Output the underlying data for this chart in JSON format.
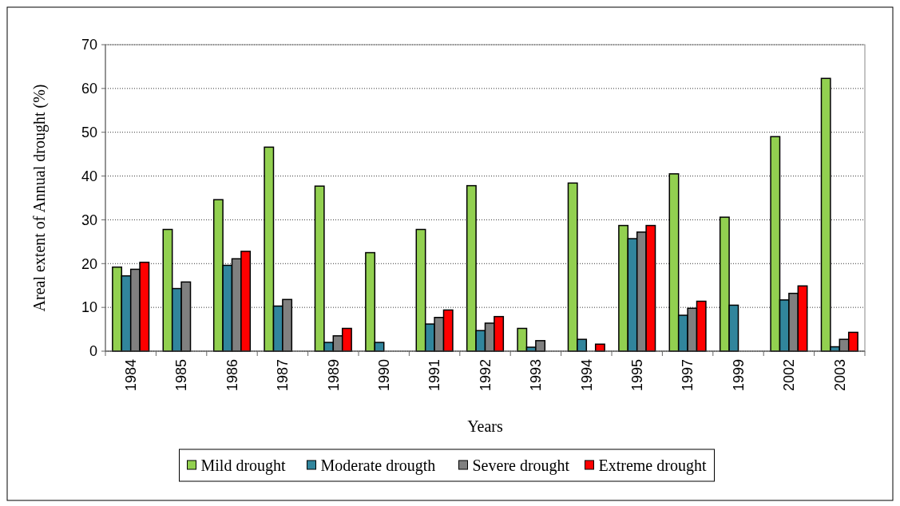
{
  "chart_data": {
    "type": "bar",
    "xlabel": "Years",
    "ylabel": "Areal extent of Annual drought (%)",
    "categories": [
      "1984",
      "1985",
      "1986",
      "1987",
      "1989",
      "1990",
      "1991",
      "1992",
      "1993",
      "1994",
      "1995",
      "1997",
      "1999",
      "2002",
      "2003"
    ],
    "series": [
      {
        "name": "Mild drought",
        "color": "#92d050",
        "values": [
          19.2,
          27.8,
          34.6,
          46.6,
          37.7,
          22.5,
          27.8,
          37.8,
          5.2,
          38.4,
          28.7,
          40.5,
          30.6,
          49.0,
          62.3
        ]
      },
      {
        "name": "Moderate drougth",
        "color": "#31859c",
        "values": [
          17.2,
          14.3,
          19.6,
          10.3,
          2.0,
          2.0,
          6.2,
          4.7,
          0.9,
          2.7,
          25.7,
          8.2,
          10.5,
          11.7,
          1.0
        ]
      },
      {
        "name": "Severe drought",
        "color": "#808080",
        "values": [
          18.7,
          15.8,
          21.1,
          11.8,
          3.5,
          null,
          7.7,
          6.4,
          2.4,
          null,
          27.2,
          9.8,
          null,
          13.2,
          2.7
        ]
      },
      {
        "name": "Extreme drought",
        "color": "#ff0000",
        "values": [
          20.3,
          null,
          22.8,
          null,
          5.2,
          null,
          9.4,
          7.9,
          null,
          1.6,
          28.7,
          11.4,
          null,
          14.9,
          4.3
        ]
      }
    ],
    "ylim": [
      0,
      70
    ],
    "yticks": [
      0,
      10,
      20,
      30,
      40,
      50,
      60,
      70
    ],
    "grid": "y",
    "legend": "bottom"
  }
}
